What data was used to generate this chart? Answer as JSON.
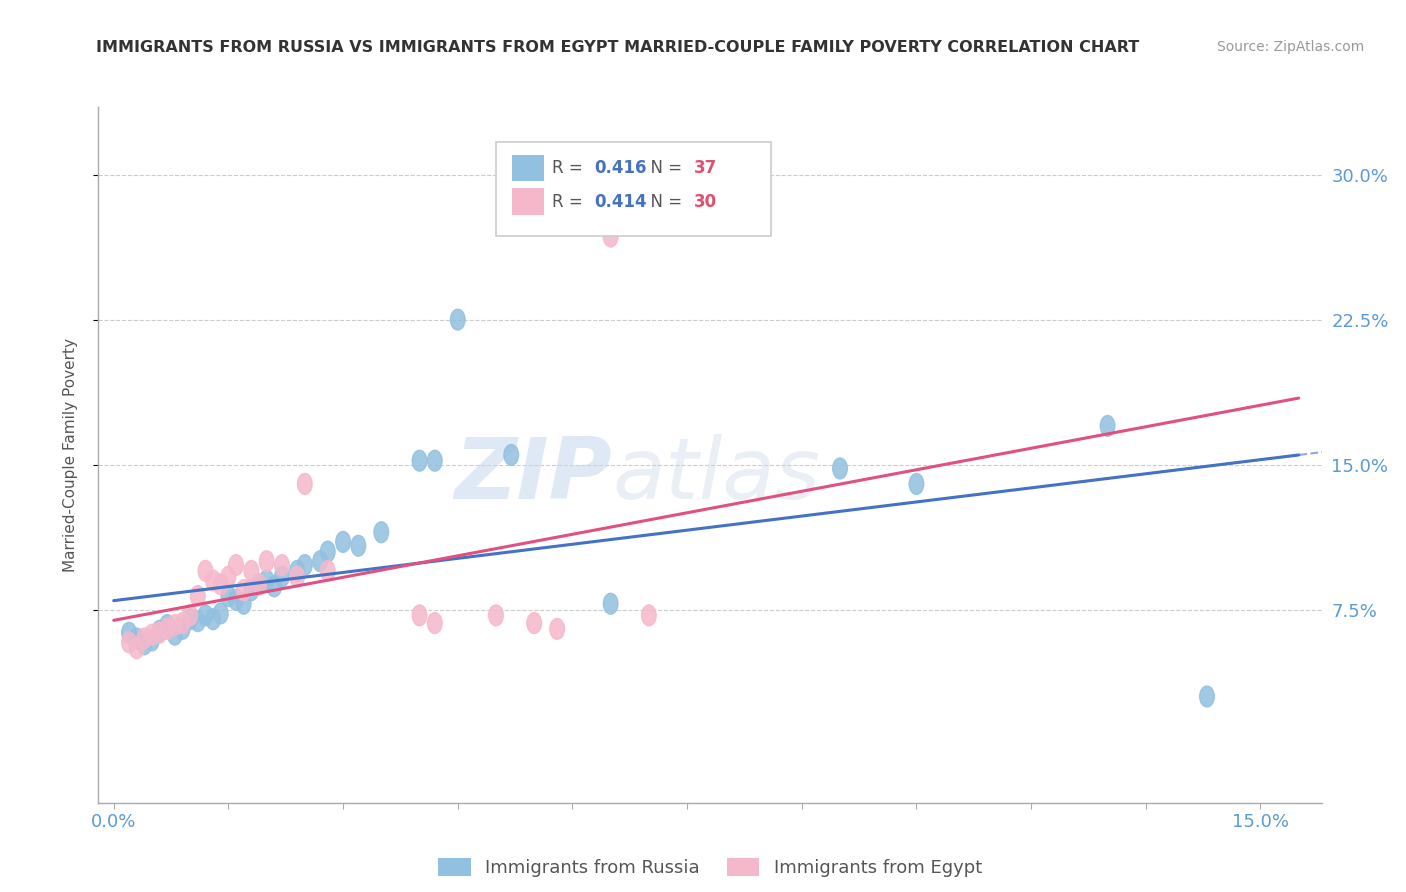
{
  "title": "IMMIGRANTS FROM RUSSIA VS IMMIGRANTS FROM EGYPT MARRIED-COUPLE FAMILY POVERTY CORRELATION CHART",
  "source": "Source: ZipAtlas.com",
  "ylabel": "Married-Couple Family Poverty",
  "yticks": [
    "7.5%",
    "15.0%",
    "22.5%",
    "30.0%"
  ],
  "ytick_vals": [
    0.075,
    0.15,
    0.225,
    0.3
  ],
  "legend_label_russia": "Immigrants from Russia",
  "legend_label_egypt": "Immigrants from Egypt",
  "russia_color": "#92c0e0",
  "egypt_color": "#f5b8cb",
  "russia_line_color": "#4472c4",
  "egypt_line_color": "#e05080",
  "watermark_color": "#d0dff0",
  "russia_scatter": [
    [
      0.002,
      0.063
    ],
    [
      0.003,
      0.06
    ],
    [
      0.004,
      0.057
    ],
    [
      0.005,
      0.059
    ],
    [
      0.006,
      0.064
    ],
    [
      0.007,
      0.067
    ],
    [
      0.008,
      0.062
    ],
    [
      0.009,
      0.065
    ],
    [
      0.01,
      0.07
    ],
    [
      0.011,
      0.069
    ],
    [
      0.012,
      0.072
    ],
    [
      0.013,
      0.07
    ],
    [
      0.014,
      0.073
    ],
    [
      0.015,
      0.082
    ],
    [
      0.016,
      0.08
    ],
    [
      0.017,
      0.078
    ],
    [
      0.018,
      0.085
    ],
    [
      0.019,
      0.088
    ],
    [
      0.02,
      0.09
    ],
    [
      0.021,
      0.087
    ],
    [
      0.022,
      0.092
    ],
    [
      0.024,
      0.095
    ],
    [
      0.025,
      0.098
    ],
    [
      0.027,
      0.1
    ],
    [
      0.028,
      0.105
    ],
    [
      0.03,
      0.11
    ],
    [
      0.032,
      0.108
    ],
    [
      0.035,
      0.115
    ],
    [
      0.04,
      0.152
    ],
    [
      0.042,
      0.152
    ],
    [
      0.045,
      0.225
    ],
    [
      0.052,
      0.155
    ],
    [
      0.065,
      0.078
    ],
    [
      0.095,
      0.148
    ],
    [
      0.105,
      0.14
    ],
    [
      0.13,
      0.17
    ],
    [
      0.143,
      0.03
    ]
  ],
  "egypt_scatter": [
    [
      0.002,
      0.058
    ],
    [
      0.003,
      0.055
    ],
    [
      0.004,
      0.06
    ],
    [
      0.005,
      0.062
    ],
    [
      0.006,
      0.063
    ],
    [
      0.007,
      0.065
    ],
    [
      0.008,
      0.067
    ],
    [
      0.009,
      0.068
    ],
    [
      0.01,
      0.072
    ],
    [
      0.011,
      0.082
    ],
    [
      0.012,
      0.095
    ],
    [
      0.013,
      0.09
    ],
    [
      0.014,
      0.088
    ],
    [
      0.015,
      0.092
    ],
    [
      0.016,
      0.098
    ],
    [
      0.017,
      0.085
    ],
    [
      0.018,
      0.095
    ],
    [
      0.019,
      0.088
    ],
    [
      0.02,
      0.1
    ],
    [
      0.022,
      0.098
    ],
    [
      0.024,
      0.092
    ],
    [
      0.025,
      0.14
    ],
    [
      0.028,
      0.095
    ],
    [
      0.04,
      0.072
    ],
    [
      0.042,
      0.068
    ],
    [
      0.05,
      0.072
    ],
    [
      0.055,
      0.068
    ],
    [
      0.058,
      0.065
    ],
    [
      0.065,
      0.268
    ],
    [
      0.07,
      0.072
    ]
  ],
  "xlim": [
    -0.002,
    0.158
  ],
  "ylim": [
    -0.025,
    0.335
  ],
  "russia_r": 0.416,
  "egypt_r": 0.414,
  "russia_n": 37,
  "egypt_n": 30
}
